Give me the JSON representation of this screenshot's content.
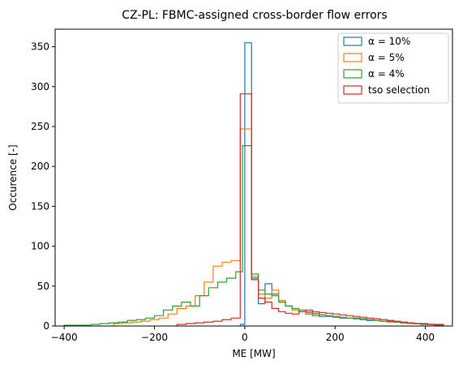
{
  "chart_data": {
    "type": "histogram-step",
    "title": "CZ-PL: FBMC-assigned cross-border flow errors",
    "xlabel": "ME [MW]",
    "ylabel": "Occurence [-]",
    "xlim": [
      -420,
      460
    ],
    "ylim": [
      0,
      372
    ],
    "xticks": [
      -400,
      -200,
      0,
      200,
      400
    ],
    "xtick_labels": [
      "−400",
      "−200",
      "0",
      "200",
      "400"
    ],
    "yticks": [
      0,
      50,
      100,
      150,
      200,
      250,
      300,
      350
    ],
    "legend_position": "upper-right",
    "grid": false,
    "series": [
      {
        "name": "α = 10%",
        "color": "#1f77b4",
        "edges": [
          -10,
          0,
          15,
          30,
          45,
          60,
          75,
          90,
          105,
          120,
          135,
          150,
          165,
          180,
          195,
          210,
          225,
          240,
          255,
          270,
          285,
          300,
          315,
          330,
          345,
          360,
          375,
          390,
          405,
          420,
          440
        ],
        "counts": [
          2,
          355,
          60,
          28,
          53,
          40,
          30,
          25,
          20,
          18,
          15,
          13,
          12,
          12,
          11,
          10,
          10,
          9,
          8,
          7,
          7,
          6,
          5,
          5,
          4,
          3,
          3,
          2,
          2,
          1
        ]
      },
      {
        "name": "α = 5%",
        "color": "#ff7f0e",
        "edges": [
          -290,
          -270,
          -250,
          -230,
          -210,
          -190,
          -170,
          -150,
          -130,
          -110,
          -90,
          -70,
          -50,
          -30,
          -10,
          0,
          15,
          30,
          45,
          60,
          75,
          90,
          105,
          120,
          135,
          150,
          165,
          180,
          195,
          210,
          225,
          240,
          255,
          270,
          285,
          300,
          315,
          330,
          345,
          360,
          375,
          390,
          405,
          420,
          440
        ],
        "counts": [
          3,
          4,
          5,
          6,
          8,
          10,
          15,
          22,
          25,
          38,
          55,
          75,
          80,
          82,
          247,
          247,
          62,
          40,
          35,
          45,
          32,
          25,
          20,
          18,
          17,
          15,
          14,
          13,
          12,
          11,
          10,
          10,
          9,
          8,
          7,
          6,
          5,
          5,
          4,
          3,
          3,
          2,
          2,
          1
        ]
      },
      {
        "name": "α = 4%",
        "color": "#2ca02c",
        "edges": [
          -400,
          -340,
          -320,
          -300,
          -280,
          -260,
          -240,
          -220,
          -200,
          -180,
          -160,
          -140,
          -120,
          -100,
          -80,
          -60,
          -40,
          -20,
          -5,
          0,
          15,
          30,
          45,
          60,
          75,
          90,
          105,
          120,
          135,
          150,
          165,
          180,
          195,
          210,
          225,
          240,
          255,
          270,
          285,
          300,
          315,
          330,
          345,
          360,
          375,
          390,
          405,
          420,
          440
        ],
        "counts": [
          1,
          2,
          3,
          4,
          5,
          7,
          8,
          10,
          13,
          20,
          25,
          30,
          25,
          38,
          48,
          55,
          60,
          68,
          226,
          226,
          65,
          45,
          40,
          38,
          30,
          25,
          22,
          20,
          18,
          16,
          14,
          13,
          12,
          11,
          10,
          10,
          9,
          8,
          7,
          6,
          6,
          5,
          4,
          4,
          3,
          2,
          2,
          1
        ]
      },
      {
        "name": "tso selection",
        "color": "#d62728",
        "edges": [
          -150,
          -130,
          -110,
          -90,
          -70,
          -50,
          -30,
          -10,
          0,
          15,
          30,
          45,
          60,
          75,
          90,
          105,
          120,
          135,
          150,
          165,
          180,
          195,
          210,
          225,
          240,
          255,
          270,
          285,
          300,
          315,
          330,
          345,
          360,
          375,
          390,
          405,
          420,
          440
        ],
        "counts": [
          2,
          3,
          4,
          5,
          6,
          8,
          10,
          291,
          291,
          58,
          35,
          30,
          22,
          18,
          16,
          15,
          18,
          20,
          18,
          17,
          16,
          15,
          14,
          13,
          12,
          11,
          10,
          9,
          8,
          7,
          6,
          5,
          4,
          3,
          3,
          2,
          2,
          1
        ]
      }
    ]
  }
}
